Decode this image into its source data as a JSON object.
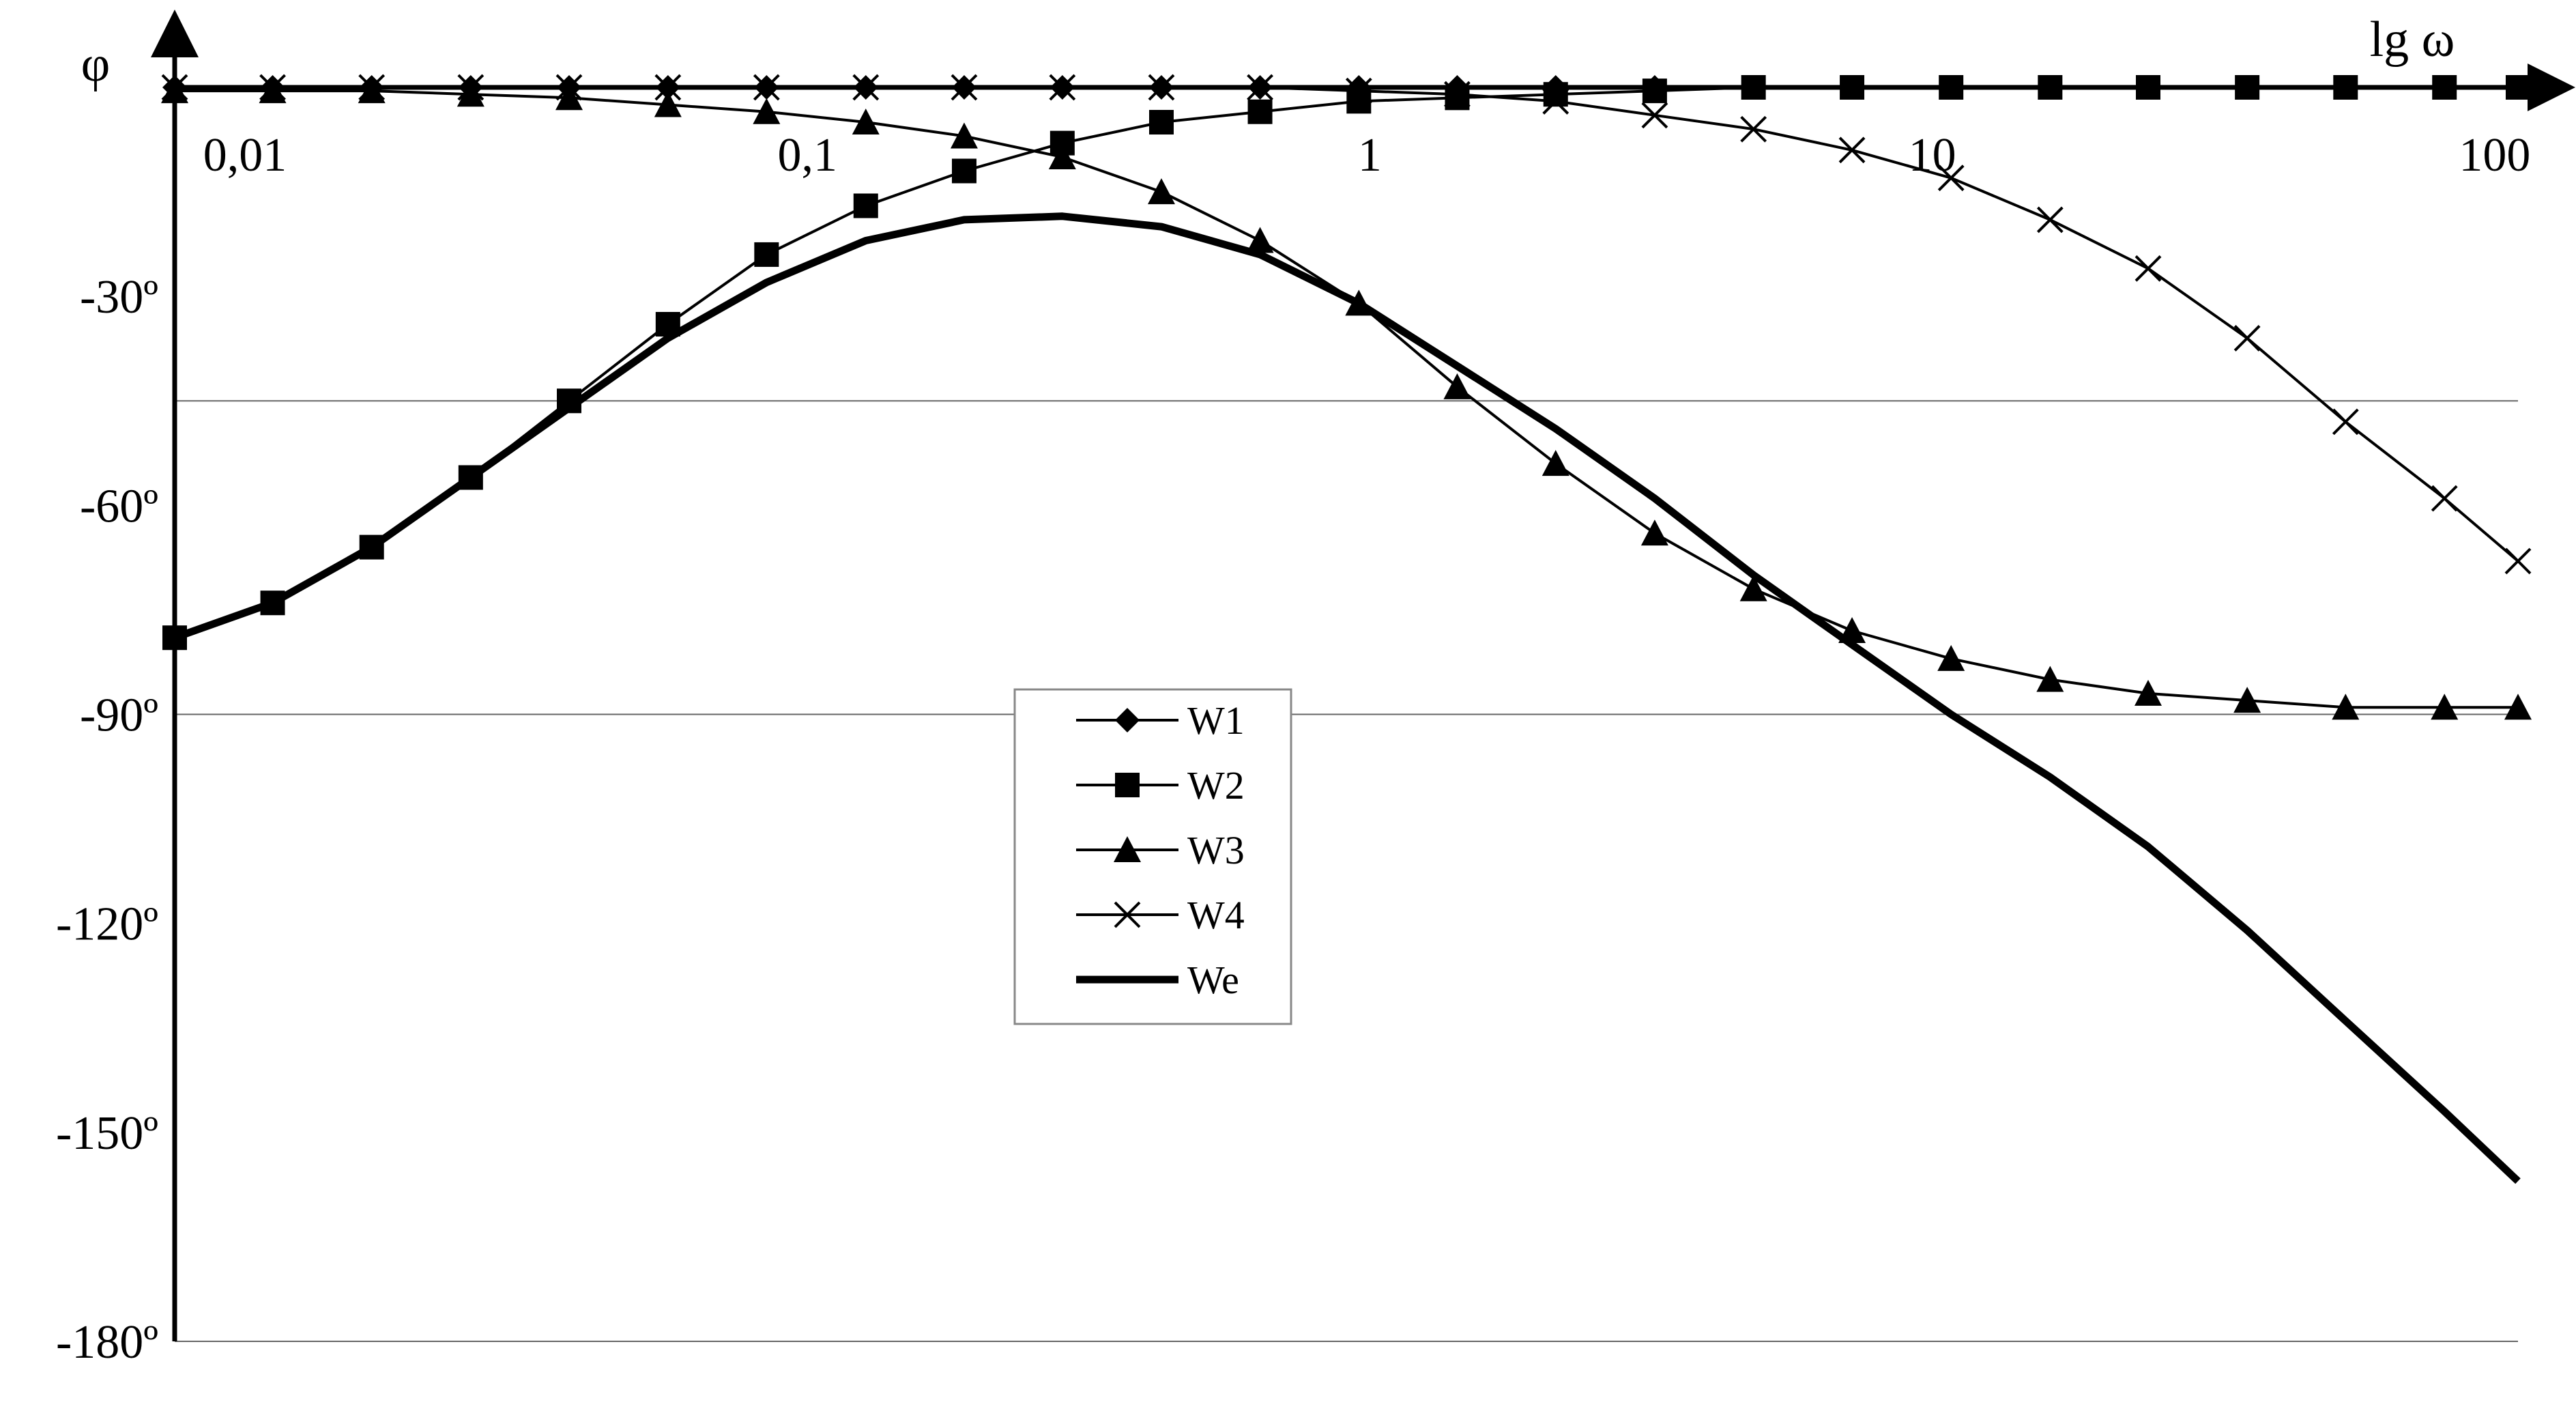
{
  "chart_data": {
    "type": "line",
    "title": "",
    "xlabel": "lg ω",
    "ylabel": "φ",
    "xscale": "log",
    "xlim": [
      0.0075,
      110
    ],
    "ylim": [
      -180,
      0
    ],
    "grid": "horizontal lines at -45, -90, -180",
    "legend_position": "center",
    "x_ticks": [
      {
        "value": 0.01,
        "label": "0,01"
      },
      {
        "value": 0.1,
        "label": "0,1"
      },
      {
        "value": 1,
        "label": "1"
      },
      {
        "value": 10,
        "label": "10"
      },
      {
        "value": 100,
        "label": "100"
      }
    ],
    "y_ticks": [
      {
        "value": -30,
        "label": "-30º"
      },
      {
        "value": -60,
        "label": "-60º"
      },
      {
        "value": -90,
        "label": "-90º"
      },
      {
        "value": -120,
        "label": "-120º"
      },
      {
        "value": -150,
        "label": "-150º"
      },
      {
        "value": -180,
        "label": "-180º"
      }
    ],
    "gridlines": [
      -45,
      -90,
      -180
    ],
    "x": [
      0.0075,
      0.0112,
      0.0168,
      0.0252,
      0.0377,
      0.0565,
      0.0846,
      0.127,
      0.19,
      0.284,
      0.426,
      0.638,
      0.956,
      1.43,
      2.14,
      3.21,
      4.81,
      7.2,
      10.8,
      16.2,
      24.2,
      36.3,
      54.3,
      81.4,
      110
    ],
    "series": [
      {
        "name": "W1",
        "marker": "diamond",
        "values": [
          0,
          0,
          0,
          0,
          0,
          0,
          0,
          0,
          0,
          0,
          0,
          0,
          0,
          0,
          0,
          0,
          0,
          0,
          0,
          0,
          0,
          0,
          0,
          0,
          0
        ]
      },
      {
        "name": "W2",
        "marker": "square",
        "values": [
          -79,
          -74,
          -66,
          -56,
          -45,
          -34,
          -24,
          -17,
          -12,
          -8,
          -5,
          -3.5,
          -2,
          -1.5,
          -1,
          -0.5,
          0,
          0,
          0,
          0,
          0,
          0,
          0,
          0,
          0
        ]
      },
      {
        "name": "W3",
        "marker": "triangle",
        "values": [
          -0.5,
          -0.5,
          -0.5,
          -1,
          -1.5,
          -2.5,
          -3.5,
          -5,
          -7,
          -10,
          -15,
          -22,
          -31,
          -43,
          -54,
          -64,
          -72,
          -78,
          -82,
          -85,
          -87,
          -88,
          -89,
          -89,
          -89
        ]
      },
      {
        "name": "W4",
        "marker": "x",
        "values": [
          0,
          0,
          0,
          0,
          0,
          0,
          0,
          0,
          0,
          0,
          0,
          0,
          -0.5,
          -1,
          -2,
          -4,
          -6,
          -9,
          -13,
          -19,
          -26,
          -36,
          -48,
          -59,
          -68
        ]
      },
      {
        "name": "We",
        "marker": "none",
        "values": [
          -79,
          -74,
          -66,
          -56,
          -46,
          -36,
          -28,
          -22,
          -19,
          -18.5,
          -20,
          -24,
          -31,
          -40,
          -49,
          -59,
          -70,
          -80,
          -90,
          -99,
          -109,
          -121,
          -134,
          -147,
          -157
        ]
      }
    ]
  }
}
